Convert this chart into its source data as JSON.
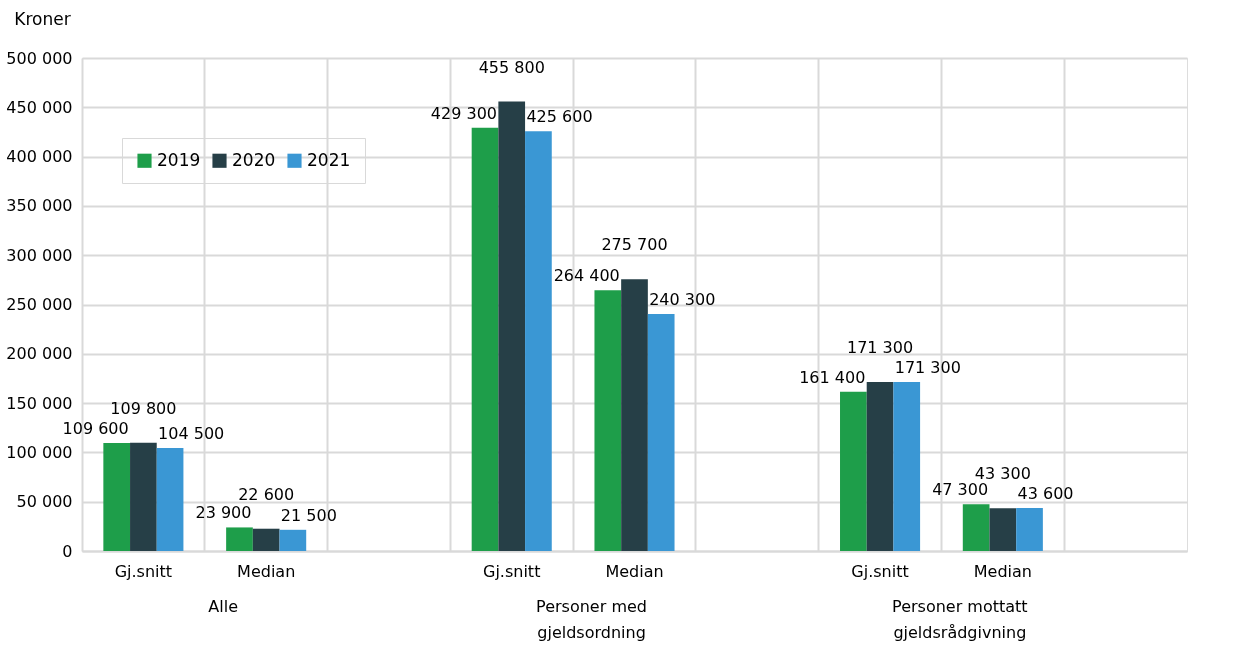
{
  "chart_data": {
    "type": "bar",
    "ylabel": "Kroner",
    "categories": [
      "Gj.snitt",
      "Median",
      null,
      "Gj.snitt",
      "Median",
      null,
      "Gj.snitt",
      "Median",
      null
    ],
    "series": [
      {
        "name": "2019",
        "color": "#1e9e4a",
        "values": [
          109600,
          23900,
          null,
          429300,
          264400,
          null,
          161400,
          47300,
          null
        ]
      },
      {
        "name": "2020",
        "color": "#263f47",
        "values": [
          109800,
          22600,
          null,
          455800,
          275700,
          null,
          171300,
          43300,
          null
        ]
      },
      {
        "name": "2021",
        "color": "#3a97d4",
        "values": [
          104500,
          21500,
          null,
          425600,
          240300,
          null,
          171300,
          43600,
          null
        ]
      }
    ],
    "ylim": [
      0,
      500000
    ],
    "yticks": [
      0,
      {
        "value": 50000,
        "label": "50 000"
      },
      {
        "value": 100000,
        "label": "100 000"
      },
      {
        "value": 150000,
        "label": "150 000"
      },
      {
        "value": 200000,
        "label": "200 000"
      },
      {
        "value": 250000,
        "label": "250 000"
      },
      {
        "value": 300000,
        "label": "300 000"
      },
      {
        "value": 350000,
        "label": "350 000"
      },
      {
        "value": 400000,
        "label": "400 000"
      },
      {
        "value": 450000,
        "label": "450 000"
      },
      {
        "value": 500000,
        "label": "500 000"
      }
    ],
    "annotations": [
      "Alle",
      "Personer med gjeldsordning",
      "Personer mottatt gjeldsrådgivning"
    ],
    "data_labels": true,
    "grid": true,
    "legend": "top left"
  }
}
